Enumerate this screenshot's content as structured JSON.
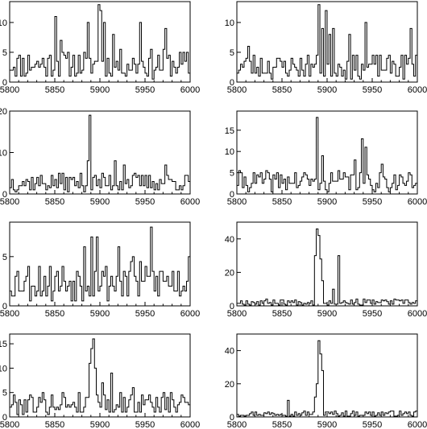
{
  "chart_data": [
    {
      "type": "histogram",
      "x_ticks": [
        5800,
        5850,
        5900,
        5950,
        6000
      ],
      "y_ticks": [
        0,
        5,
        10
      ],
      "xlim": [
        5800,
        6000
      ],
      "ylim": [
        0,
        13.5
      ],
      "bin_width": 2,
      "seed": 11,
      "peaks": [
        [
          5850,
          11
        ],
        [
          5886,
          10
        ],
        [
          5897,
          13
        ],
        [
          5900,
          12
        ],
        [
          5903,
          10
        ],
        [
          5943,
          10
        ],
        [
          5972,
          9
        ],
        [
          5913,
          8
        ],
        [
          5855,
          7
        ]
      ],
      "baseline": 3.0
    },
    {
      "type": "histogram",
      "x_ticks": [
        5800,
        5850,
        5900,
        5950,
        6000
      ],
      "y_ticks": [
        0,
        5,
        10
      ],
      "xlim": [
        5800,
        6000
      ],
      "ylim": [
        0,
        13.5
      ],
      "bin_width": 2,
      "seed": 23,
      "peaks": [
        [
          5890,
          13
        ],
        [
          5894,
          9
        ],
        [
          5898,
          12
        ],
        [
          5902,
          8
        ],
        [
          5906,
          9
        ],
        [
          5942,
          10
        ],
        [
          5924,
          8
        ],
        [
          5992,
          9
        ],
        [
          5812,
          6
        ]
      ],
      "baseline": 2.6
    },
    {
      "type": "histogram",
      "x_ticks": [
        5800,
        5850,
        5900,
        5950,
        6000
      ],
      "y_ticks": [
        0,
        10,
        20
      ],
      "xlim": [
        5800,
        6000
      ],
      "ylim": [
        0,
        20
      ],
      "bin_width": 2,
      "seed": 37,
      "peaks": [
        [
          5888,
          19
        ],
        [
          5886,
          8
        ],
        [
          5916,
          8
        ],
        [
          5926,
          7
        ],
        [
          5972,
          7
        ]
      ],
      "baseline": 2.8
    },
    {
      "type": "histogram",
      "x_ticks": [
        5800,
        5850,
        5900,
        5950,
        6000
      ],
      "y_ticks": [
        0,
        5,
        10,
        15
      ],
      "xlim": [
        5800,
        6000
      ],
      "ylim": [
        0,
        19.5
      ],
      "bin_width": 2,
      "seed": 41,
      "peaks": [
        [
          5888,
          18
        ],
        [
          5938,
          13
        ],
        [
          5942,
          11
        ],
        [
          5894,
          9
        ],
        [
          5930,
          8
        ],
        [
          5960,
          7
        ]
      ],
      "baseline": 3.0
    },
    {
      "type": "histogram",
      "x_ticks": [
        5800,
        5850,
        5900,
        5950,
        6000
      ],
      "y_ticks": [
        0,
        5
      ],
      "xlim": [
        5800,
        6000
      ],
      "ylim": [
        0,
        8.5
      ],
      "bin_width": 2,
      "seed": 53,
      "peaks": [
        [
          5956,
          8
        ],
        [
          5890,
          7
        ],
        [
          5895,
          7
        ],
        [
          5882,
          6
        ],
        [
          5920,
          6
        ],
        [
          5936,
          5
        ],
        [
          5998,
          5
        ]
      ],
      "baseline": 2.5
    },
    {
      "type": "histogram",
      "x_ticks": [
        5800,
        5850,
        5900,
        5950,
        6000
      ],
      "y_ticks": [
        0,
        20,
        40
      ],
      "xlim": [
        5800,
        6000
      ],
      "ylim": [
        0,
        50
      ],
      "bin_width": 2,
      "seed": 67,
      "peaks": [
        [
          5888,
          46
        ],
        [
          5890,
          42
        ],
        [
          5886,
          30
        ],
        [
          5892,
          28
        ],
        [
          5894,
          15
        ],
        [
          5912,
          30
        ],
        [
          5906,
          10
        ]
      ],
      "baseline": 2.2
    },
    {
      "type": "histogram",
      "x_ticks": [
        5800,
        5850,
        5900,
        5950,
        6000
      ],
      "y_ticks": [
        0,
        5,
        10,
        15
      ],
      "xlim": [
        5800,
        6000
      ],
      "ylim": [
        0,
        17
      ],
      "bin_width": 2,
      "seed": 79,
      "peaks": [
        [
          5892,
          16
        ],
        [
          5890,
          14
        ],
        [
          5888,
          11
        ],
        [
          5894,
          10
        ],
        [
          5902,
          7
        ],
        [
          5912,
          9
        ],
        [
          5858,
          5
        ],
        [
          5936,
          6
        ]
      ],
      "baseline": 2.8
    },
    {
      "type": "histogram",
      "x_ticks": [
        5800,
        5850,
        5900,
        5950,
        6000
      ],
      "y_ticks": [
        0,
        20,
        40
      ],
      "xlim": [
        5800,
        6000
      ],
      "ylim": [
        0,
        50
      ],
      "bin_width": 2,
      "seed": 97,
      "peaks": [
        [
          5890,
          46
        ],
        [
          5892,
          38
        ],
        [
          5888,
          20
        ],
        [
          5894,
          28
        ],
        [
          5886,
          12
        ],
        [
          5856,
          10
        ]
      ],
      "baseline": 2.0
    }
  ]
}
